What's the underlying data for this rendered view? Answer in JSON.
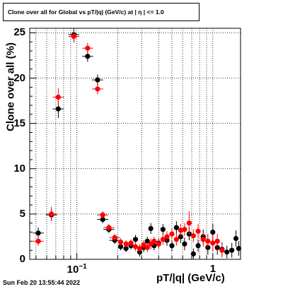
{
  "chart_data": {
    "type": "scatter",
    "title": "Clone  over all for Global vs pT/|q| (GeV/c) at | η | <= 1.0",
    "xlabel": "pT/|q| (GeV/c)",
    "ylabel": "Clone  over all (%)",
    "x_scale": "log",
    "xlim": [
      0.045,
      1.6
    ],
    "ylim": [
      0,
      25.5
    ],
    "grid": true,
    "y_ticks": [
      "0",
      "5",
      "10",
      "15",
      "20",
      "25"
    ],
    "x_tick_labels": [
      {
        "value": 0.1,
        "base": "10",
        "exp": "−1"
      },
      {
        "value": 1,
        "base": "1",
        "exp": ""
      }
    ],
    "series": [
      {
        "color": "#000000",
        "points": [
          {
            "x": 0.052,
            "y": 2.9,
            "ey": 0.6
          },
          {
            "x": 0.065,
            "y": 4.9,
            "ey": 0.6
          },
          {
            "x": 0.073,
            "y": 16.6,
            "ey": 1.0
          },
          {
            "x": 0.095,
            "y": 24.8,
            "ey": 0.7
          },
          {
            "x": 0.12,
            "y": 22.4,
            "ey": 0.6
          },
          {
            "x": 0.142,
            "y": 19.8,
            "ey": 0.6
          },
          {
            "x": 0.155,
            "y": 4.4,
            "ey": 0.4
          },
          {
            "x": 0.172,
            "y": 3.3,
            "ey": 0.4
          },
          {
            "x": 0.19,
            "y": 2.1,
            "ey": 0.4
          },
          {
            "x": 0.21,
            "y": 1.4,
            "ey": 0.4
          },
          {
            "x": 0.23,
            "y": 1.2,
            "ey": 0.4
          },
          {
            "x": 0.25,
            "y": 1.5,
            "ey": 0.4
          },
          {
            "x": 0.27,
            "y": 2.2,
            "ey": 0.5
          },
          {
            "x": 0.29,
            "y": 0.8,
            "ey": 0.5
          },
          {
            "x": 0.31,
            "y": 1.3,
            "ey": 0.5
          },
          {
            "x": 0.33,
            "y": 2.0,
            "ey": 0.5
          },
          {
            "x": 0.35,
            "y": 3.4,
            "ey": 0.6
          },
          {
            "x": 0.37,
            "y": 1.5,
            "ey": 0.5
          },
          {
            "x": 0.4,
            "y": 1.8,
            "ey": 0.5
          },
          {
            "x": 0.43,
            "y": 3.3,
            "ey": 0.6
          },
          {
            "x": 0.46,
            "y": 2.1,
            "ey": 0.6
          },
          {
            "x": 0.5,
            "y": 1.5,
            "ey": 0.6
          },
          {
            "x": 0.54,
            "y": 3.5,
            "ey": 0.7
          },
          {
            "x": 0.58,
            "y": 2.5,
            "ey": 0.7
          },
          {
            "x": 0.62,
            "y": 1.7,
            "ey": 0.7
          },
          {
            "x": 0.67,
            "y": 2.8,
            "ey": 0.7
          },
          {
            "x": 0.72,
            "y": 0.6,
            "ey": 0.6
          },
          {
            "x": 0.78,
            "y": 1.5,
            "ey": 0.7
          },
          {
            "x": 0.85,
            "y": 2.5,
            "ey": 0.8
          },
          {
            "x": 0.92,
            "y": 1.3,
            "ey": 0.8
          },
          {
            "x": 1.0,
            "y": 3.0,
            "ey": 0.9
          },
          {
            "x": 1.08,
            "y": 1.3,
            "ey": 0.8
          },
          {
            "x": 1.17,
            "y": 1.1,
            "ey": 0.8
          },
          {
            "x": 1.27,
            "y": 0.8,
            "ey": 0.7
          },
          {
            "x": 1.38,
            "y": 1.0,
            "ey": 0.8
          },
          {
            "x": 1.48,
            "y": 2.3,
            "ey": 0.9
          },
          {
            "x": 1.55,
            "y": 1.2,
            "ey": 0.8
          }
        ]
      },
      {
        "color": "#ff0000",
        "points": [
          {
            "x": 0.052,
            "y": 2.0,
            "ey": 0.5
          },
          {
            "x": 0.065,
            "y": 5.0,
            "ey": 0.8
          },
          {
            "x": 0.073,
            "y": 17.9,
            "ey": 1.0
          },
          {
            "x": 0.095,
            "y": 24.6,
            "ey": 0.7
          },
          {
            "x": 0.12,
            "y": 23.3,
            "ey": 0.6
          },
          {
            "x": 0.142,
            "y": 18.8,
            "ey": 0.6
          },
          {
            "x": 0.155,
            "y": 4.9,
            "ey": 0.4
          },
          {
            "x": 0.172,
            "y": 3.5,
            "ey": 0.4
          },
          {
            "x": 0.19,
            "y": 2.4,
            "ey": 0.4
          },
          {
            "x": 0.21,
            "y": 1.9,
            "ey": 0.4
          },
          {
            "x": 0.23,
            "y": 1.7,
            "ey": 0.4
          },
          {
            "x": 0.25,
            "y": 1.8,
            "ey": 0.4
          },
          {
            "x": 0.27,
            "y": 1.4,
            "ey": 0.5
          },
          {
            "x": 0.29,
            "y": 1.2,
            "ey": 0.5
          },
          {
            "x": 0.31,
            "y": 1.6,
            "ey": 0.5
          },
          {
            "x": 0.33,
            "y": 1.3,
            "ey": 0.5
          },
          {
            "x": 0.35,
            "y": 1.7,
            "ey": 0.6
          },
          {
            "x": 0.37,
            "y": 2.0,
            "ey": 0.5
          },
          {
            "x": 0.4,
            "y": 1.7,
            "ey": 0.5
          },
          {
            "x": 0.43,
            "y": 2.2,
            "ey": 0.6
          },
          {
            "x": 0.46,
            "y": 2.5,
            "ey": 0.6
          },
          {
            "x": 0.5,
            "y": 2.8,
            "ey": 0.6
          },
          {
            "x": 0.54,
            "y": 2.2,
            "ey": 0.7
          },
          {
            "x": 0.58,
            "y": 3.2,
            "ey": 0.7
          },
          {
            "x": 0.62,
            "y": 3.3,
            "ey": 0.7
          },
          {
            "x": 0.67,
            "y": 4.0,
            "ey": 1.3
          },
          {
            "x": 0.72,
            "y": 2.6,
            "ey": 0.7
          },
          {
            "x": 0.78,
            "y": 3.1,
            "ey": 0.8
          },
          {
            "x": 0.85,
            "y": 2.2,
            "ey": 0.8
          },
          {
            "x": 0.92,
            "y": 2.0,
            "ey": 0.8
          },
          {
            "x": 1.0,
            "y": 1.8,
            "ey": 0.9
          },
          {
            "x": 1.08,
            "y": 2.0,
            "ey": 0.8
          },
          {
            "x": 1.17,
            "y": 1.0,
            "ey": 0.8
          }
        ]
      }
    ]
  },
  "footer": "Sun Feb 20 13:55:44 2022"
}
